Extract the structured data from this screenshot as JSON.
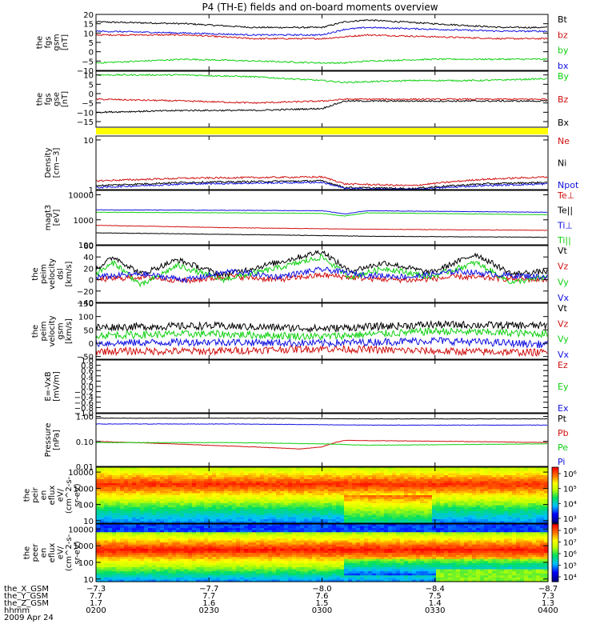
{
  "title": "P4 (TH-E) fields and on-board moments overview",
  "colors": {
    "black": "#000000",
    "red": "#d01010",
    "green": "#10d010",
    "blue": "#1010e0",
    "yellow": "#ffff00"
  },
  "chart_data": [
    {
      "type": "line",
      "id": "fgs_gsm",
      "ylabel": [
        "the",
        "fgs",
        "gsm",
        "[nT]"
      ],
      "ylim": [
        -10,
        20
      ],
      "yticks": [
        {
          "v": 20,
          "t": "20"
        },
        {
          "v": 15,
          "t": "15"
        },
        {
          "v": 10,
          "t": "10"
        },
        {
          "v": 5,
          "t": "5"
        },
        {
          "v": 0,
          "t": "0"
        },
        {
          "v": -5,
          "t": "−5"
        },
        {
          "v": -10,
          "t": "−10"
        }
      ],
      "series": [
        {
          "name": "Bt",
          "color": "#000000",
          "x": [
            0,
            0.2,
            0.35,
            0.5,
            0.55,
            0.6,
            0.75,
            0.9,
            1
          ],
          "y": [
            16,
            15,
            13,
            13,
            16,
            17,
            15,
            13,
            13
          ]
        },
        {
          "name": "bz",
          "color": "#d01010",
          "x": [
            0,
            0.2,
            0.35,
            0.5,
            0.55,
            0.6,
            0.75,
            0.9,
            1
          ],
          "y": [
            9,
            9,
            7,
            7,
            8,
            9,
            8,
            7,
            7
          ]
        },
        {
          "name": "by",
          "color": "#10d010",
          "x": [
            0,
            0.2,
            0.35,
            0.5,
            0.55,
            0.6,
            0.75,
            0.9,
            1
          ],
          "y": [
            -6,
            -4,
            -5,
            -6,
            -6,
            -5,
            -4,
            -4,
            -4
          ]
        },
        {
          "name": "bx",
          "color": "#1010e0",
          "x": [
            0,
            0.2,
            0.35,
            0.5,
            0.55,
            0.6,
            0.75,
            0.9,
            1
          ],
          "y": [
            11,
            10,
            9,
            9,
            12,
            13,
            12,
            11,
            11
          ]
        }
      ]
    },
    {
      "type": "line",
      "id": "fgs_gse",
      "ylabel": [
        "the",
        "fgs",
        "gse",
        "[nT]"
      ],
      "ylim": [
        -18,
        12
      ],
      "yticks": [
        {
          "v": 10,
          "t": "10"
        },
        {
          "v": 5,
          "t": "5"
        },
        {
          "v": 0,
          "t": "0"
        },
        {
          "v": -5,
          "t": "−5"
        },
        {
          "v": -10,
          "t": "−10"
        },
        {
          "v": -15,
          "t": "−15"
        }
      ],
      "series": [
        {
          "name": "By",
          "color": "#10d010",
          "x": [
            0,
            0.2,
            0.35,
            0.5,
            0.55,
            0.7,
            0.85,
            1
          ],
          "y": [
            10,
            10,
            9,
            7,
            6,
            7,
            7,
            8
          ]
        },
        {
          "name": "Bz",
          "color": "#d01010",
          "x": [
            0,
            0.2,
            0.35,
            0.5,
            0.55,
            0.7,
            0.85,
            1
          ],
          "y": [
            -3,
            -4,
            -5,
            -4,
            -3,
            -3,
            -3,
            -3
          ]
        },
        {
          "name": "Bx",
          "color": "#000000",
          "x": [
            0,
            0.2,
            0.35,
            0.5,
            0.55,
            0.7,
            0.85,
            1
          ],
          "y": [
            -10,
            -9,
            -9,
            -8,
            -4,
            -4,
            -4,
            -4
          ]
        }
      ]
    },
    {
      "type": "line",
      "id": "density",
      "ylog": true,
      "ylabel": [
        "Density",
        "[cm−3]"
      ],
      "ylim": [
        1,
        12
      ],
      "yticks": [
        {
          "v": 10,
          "t": "10"
        },
        {
          "v": 1,
          "t": "1"
        }
      ],
      "series": [
        {
          "name": "Ne",
          "color": "#d01010",
          "x": [
            0,
            0.2,
            0.5,
            0.55,
            0.7,
            0.85,
            1
          ],
          "y": [
            1.5,
            1.7,
            1.8,
            1.3,
            1.2,
            1.6,
            1.8
          ]
        },
        {
          "name": "Ni",
          "color": "#000000",
          "x": [
            0,
            0.2,
            0.5,
            0.55,
            0.7,
            0.85,
            1
          ],
          "y": [
            1.2,
            1.4,
            1.5,
            1.1,
            1.05,
            1.3,
            1.4
          ]
        },
        {
          "name": "Npot",
          "color": "#1010e0",
          "x": [
            0,
            0.2,
            0.5,
            0.55,
            0.7,
            0.85,
            1
          ],
          "y": [
            1.1,
            1.3,
            1.4,
            1.05,
            1.0,
            1.2,
            1.3
          ]
        }
      ]
    },
    {
      "type": "line",
      "id": "temperature",
      "ylog": true,
      "ylabel": [
        "magt3",
        "[eV]"
      ],
      "ylim": [
        100,
        15000
      ],
      "yticks": [
        {
          "v": 10000,
          "t": "10000"
        },
        {
          "v": 1000,
          "t": "1000"
        },
        {
          "v": 100,
          "t": "100"
        }
      ],
      "series": [
        {
          "name": "Te⊥",
          "color": "#d01010",
          "x": [
            0,
            0.3,
            0.6,
            1
          ],
          "y": [
            600,
            480,
            420,
            380
          ]
        },
        {
          "name": "Te||",
          "color": "#000000",
          "x": [
            0,
            0.3,
            0.6,
            1
          ],
          "y": [
            300,
            260,
            220,
            200
          ]
        },
        {
          "name": "Ti⊥",
          "color": "#1010e0",
          "x": [
            0,
            0.3,
            0.5,
            0.55,
            0.6,
            1
          ],
          "y": [
            2500,
            2400,
            2300,
            1700,
            2300,
            2000
          ]
        },
        {
          "name": "Ti||",
          "color": "#10d010",
          "x": [
            0,
            0.3,
            0.5,
            0.55,
            0.6,
            1
          ],
          "y": [
            2000,
            1900,
            1800,
            1400,
            1900,
            1600
          ]
        }
      ]
    },
    {
      "type": "line",
      "id": "peim_velocity_dsl",
      "ylabel": [
        "the",
        "peim",
        "velocity",
        "dsl",
        "[km/s]"
      ],
      "ylim": [
        -40,
        60
      ],
      "yticks": [
        {
          "v": 60,
          "t": "60"
        },
        {
          "v": 40,
          "t": "40"
        },
        {
          "v": 20,
          "t": "20"
        },
        {
          "v": 0,
          "t": "0"
        },
        {
          "v": -20,
          "t": "−20"
        },
        {
          "v": -40,
          "t": "−40"
        }
      ],
      "series": [
        {
          "name": "Vt",
          "color": "#000000",
          "x": [
            0,
            0.04,
            0.1,
            0.18,
            0.28,
            0.4,
            0.5,
            0.56,
            0.64,
            0.74,
            0.84,
            0.92,
            1
          ],
          "y": [
            20,
            40,
            10,
            35,
            8,
            30,
            50,
            15,
            30,
            12,
            45,
            10,
            15
          ]
        },
        {
          "name": "Vz",
          "color": "#d01010",
          "x": [
            0,
            0.1,
            0.2,
            0.3,
            0.4,
            0.5,
            0.6,
            0.7,
            0.8,
            0.9,
            1
          ],
          "y": [
            0,
            5,
            -2,
            6,
            0,
            8,
            2,
            -1,
            5,
            2,
            0
          ]
        },
        {
          "name": "Vy",
          "color": "#10d010",
          "x": [
            0,
            0.04,
            0.1,
            0.18,
            0.28,
            0.4,
            0.5,
            0.56,
            0.64,
            0.74,
            0.84,
            0.92,
            1
          ],
          "y": [
            10,
            30,
            -10,
            25,
            0,
            20,
            40,
            5,
            20,
            5,
            30,
            -5,
            5
          ]
        },
        {
          "name": "Vx",
          "color": "#1010e0",
          "x": [
            0,
            0.1,
            0.2,
            0.3,
            0.4,
            0.5,
            0.6,
            0.7,
            0.8,
            0.9,
            1
          ],
          "y": [
            5,
            10,
            0,
            15,
            5,
            18,
            8,
            5,
            15,
            8,
            5
          ]
        }
      ]
    },
    {
      "type": "line",
      "id": "peim_velocity_gsm",
      "ylabel": [
        "the",
        "peim",
        "velocity",
        "gsm",
        "[km/s]"
      ],
      "ylim": [
        -60,
        150
      ],
      "yticks": [
        {
          "v": 150,
          "t": "150"
        },
        {
          "v": 100,
          "t": "100"
        },
        {
          "v": 50,
          "t": "50"
        },
        {
          "v": 0,
          "t": "0"
        },
        {
          "v": -50,
          "t": "−50"
        }
      ],
      "series": [
        {
          "name": "Vt",
          "color": "#000000",
          "x": [
            0,
            0.25,
            0.5,
            0.75,
            1
          ],
          "y": [
            60,
            65,
            55,
            70,
            65
          ]
        },
        {
          "name": "Vz",
          "color": "#d01010",
          "x": [
            0,
            0.25,
            0.5,
            0.75,
            1
          ],
          "y": [
            -30,
            -30,
            -20,
            -30,
            -35
          ]
        },
        {
          "name": "Vy",
          "color": "#10d010",
          "x": [
            0,
            0.25,
            0.5,
            0.75,
            1
          ],
          "y": [
            30,
            35,
            25,
            45,
            35
          ]
        },
        {
          "name": "Vx",
          "color": "#1010e0",
          "x": [
            0,
            0.25,
            0.5,
            0.75,
            1
          ],
          "y": [
            0,
            5,
            0,
            10,
            -5
          ]
        }
      ]
    },
    {
      "type": "line",
      "id": "efield",
      "ylabel": [
        "E=-VxB",
        "[mV/m]"
      ],
      "ylim": [
        -1.0,
        1.0
      ],
      "yticks": [
        {
          "v": 1.0,
          "t": "1.0"
        },
        {
          "v": 0.8,
          "t": "0.8"
        },
        {
          "v": 0.6,
          "t": "0.6"
        },
        {
          "v": 0.4,
          "t": "0.4"
        },
        {
          "v": 0.2,
          "t": "0.2"
        },
        {
          "v": 0.0,
          "t": "0.0"
        },
        {
          "v": -0.2,
          "t": "−0.2"
        },
        {
          "v": -0.4,
          "t": "−0.4"
        },
        {
          "v": -0.6,
          "t": "−0.6"
        },
        {
          "v": -0.8,
          "t": "−0.8"
        },
        {
          "v": -1.0,
          "t": "−1.0"
        }
      ],
      "series": [
        {
          "name": "Ez",
          "color": "#d01010",
          "x": [],
          "y": []
        },
        {
          "name": "Ey",
          "color": "#10d010",
          "x": [],
          "y": []
        },
        {
          "name": "Ex",
          "color": "#1010e0",
          "x": [],
          "y": []
        }
      ]
    },
    {
      "type": "line",
      "id": "pressure",
      "ylog": true,
      "ylabel": [
        "Pressure",
        "[nPa]"
      ],
      "ylim": [
        0.01,
        1.3
      ],
      "yticks": [
        {
          "v": 1.0,
          "t": "1.00"
        },
        {
          "v": 0.1,
          "t": "0.10"
        },
        {
          "v": 0.01,
          "t": "0.01"
        }
      ],
      "series": [
        {
          "name": "Pt",
          "color": "#000000",
          "x": [
            0,
            0.3,
            0.6,
            1
          ],
          "y": [
            0.85,
            0.85,
            0.8,
            0.8
          ]
        },
        {
          "name": "Pb",
          "color": "#d01010",
          "x": [
            0,
            0.25,
            0.45,
            0.5,
            0.55,
            0.8,
            1
          ],
          "y": [
            0.1,
            0.07,
            0.05,
            0.06,
            0.11,
            0.1,
            0.09
          ]
        },
        {
          "name": "Pe",
          "color": "#10d010",
          "x": [
            0,
            0.3,
            0.5,
            0.6,
            1
          ],
          "y": [
            0.09,
            0.09,
            0.08,
            0.07,
            0.08
          ]
        },
        {
          "name": "Pi",
          "color": "#1010e0",
          "x": [
            0,
            0.3,
            0.6,
            1
          ],
          "y": [
            0.5,
            0.5,
            0.45,
            0.45
          ]
        }
      ]
    },
    {
      "type": "heatmap",
      "id": "peir_spectrogram",
      "ylog": true,
      "ylabel": [
        "the",
        "peir",
        "en",
        "eflux",
        "eV/",
        "(cm^2-s-",
        "sr-eV)"
      ],
      "ylim": [
        7,
        20000
      ],
      "yticks": [
        {
          "v": 10000,
          "t": "10000"
        },
        {
          "v": 1000,
          "t": "1000"
        },
        {
          "v": 100,
          "t": "100"
        },
        {
          "v": 10,
          "t": "10"
        }
      ],
      "colorbar": {
        "ticks": [
          "10⁶",
          "10⁵",
          "10⁴",
          "10³"
        ]
      }
    },
    {
      "type": "heatmap",
      "id": "peer_spectrogram",
      "ylog": true,
      "ylabel": [
        "the",
        "peer",
        "en",
        "eflux",
        "eV/",
        "(cm^2-s-",
        "sr-eV)"
      ],
      "ylim": [
        7,
        20000
      ],
      "yticks": [
        {
          "v": 10000,
          "t": "10000"
        },
        {
          "v": 1000,
          "t": "1000"
        },
        {
          "v": 100,
          "t": "100"
        },
        {
          "v": 10,
          "t": "10"
        }
      ],
      "colorbar": {
        "ticks": [
          "10⁸",
          "10⁷",
          "10⁶",
          "10⁵",
          "10⁴"
        ]
      }
    }
  ],
  "xaxis": {
    "row_labels": [
      "the_X_GSM",
      "the_Y_GSM",
      "the_Z_GSM",
      "hhmm",
      "2009 Apr 24"
    ],
    "ticks": [
      {
        "x": 0,
        "vals": [
          "−7.3",
          "7.7",
          "1.7",
          "0200"
        ]
      },
      {
        "x": 0.25,
        "vals": [
          "−7.7",
          "7.7",
          "1.6",
          "0230"
        ]
      },
      {
        "x": 0.5,
        "vals": [
          "−8.0",
          "7.6",
          "1.5",
          "0300"
        ]
      },
      {
        "x": 0.75,
        "vals": [
          "−8.4",
          "7.5",
          "1.4",
          "0330"
        ]
      },
      {
        "x": 1,
        "vals": [
          "−8.7",
          "7.3",
          "1.3",
          "0400"
        ]
      }
    ]
  }
}
